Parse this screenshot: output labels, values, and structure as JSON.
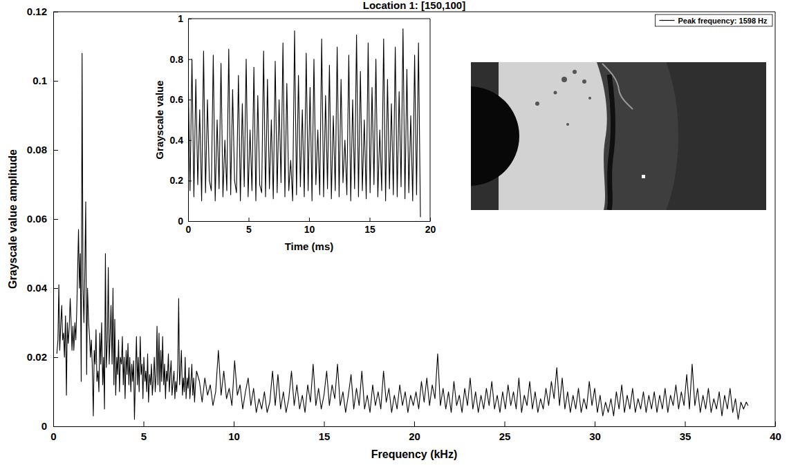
{
  "chart_data": [
    {
      "type": "line",
      "title": "Location 1: [150,100]",
      "x_label": "Frequency (kHz)",
      "y_label": "Grayscale value amplitude",
      "x": [
        0.2,
        0.26,
        0.31,
        0.36,
        0.42,
        0.47,
        0.52,
        0.57,
        0.62,
        0.68,
        0.73,
        0.78,
        0.83,
        0.88,
        0.94,
        0.99,
        1.04,
        1.09,
        1.14,
        1.2,
        1.25,
        1.3,
        1.35,
        1.4,
        1.45,
        1.5,
        1.55,
        1.598,
        1.65,
        1.7,
        1.75,
        1.8,
        1.85,
        1.9,
        1.96,
        2.01,
        2.06,
        2.11,
        2.16,
        2.22,
        2.27,
        2.32,
        2.37,
        2.42,
        2.48,
        2.53,
        2.58,
        2.63,
        2.68,
        2.74,
        2.79,
        2.84,
        2.89,
        2.94,
        3.0,
        3.05,
        3.1,
        3.15,
        3.2,
        3.26,
        3.31,
        3.36,
        3.41,
        3.46,
        3.52,
        3.57,
        3.62,
        3.67,
        3.72,
        3.78,
        3.83,
        3.88,
        3.93,
        3.98,
        4.04,
        4.09,
        4.14,
        4.19,
        4.24,
        4.3,
        4.35,
        4.4,
        4.45,
        4.5,
        4.56,
        4.61,
        4.66,
        4.71,
        4.76,
        4.82,
        4.87,
        4.92,
        4.97,
        5.02,
        5.08,
        5.13,
        5.18,
        5.23,
        5.28,
        5.34,
        5.39,
        5.44,
        5.49,
        5.54,
        5.6,
        5.65,
        5.7,
        5.75,
        5.8,
        5.86,
        5.91,
        5.96,
        6.01,
        6.06,
        6.12,
        6.17,
        6.22,
        6.27,
        6.32,
        6.38,
        6.43,
        6.48,
        6.53,
        6.58,
        6.64,
        6.69,
        6.74,
        6.79,
        6.84,
        6.9,
        6.95,
        7.0,
        7.05,
        7.1,
        7.16,
        7.21,
        7.26,
        7.31,
        7.36,
        7.42,
        7.47,
        7.52,
        7.57,
        7.62,
        7.68,
        7.73,
        7.78,
        7.83,
        7.88,
        7.94,
        8.1,
        8.25,
        8.4,
        8.55,
        8.7,
        8.85,
        9.0,
        9.15,
        9.3,
        9.45,
        9.6,
        9.75,
        9.9,
        10.05,
        10.2,
        10.35,
        10.5,
        10.65,
        10.8,
        10.95,
        11.1,
        11.25,
        11.4,
        11.55,
        11.7,
        11.85,
        12.0,
        12.15,
        12.3,
        12.45,
        12.6,
        12.75,
        12.9,
        13.05,
        13.2,
        13.35,
        13.5,
        13.65,
        13.8,
        13.95,
        14.1,
        14.25,
        14.4,
        14.55,
        14.7,
        14.85,
        15.0,
        15.15,
        15.3,
        15.45,
        15.6,
        15.75,
        15.9,
        16.05,
        16.2,
        16.35,
        16.5,
        16.65,
        16.8,
        16.95,
        17.1,
        17.25,
        17.4,
        17.55,
        17.7,
        17.85,
        18.0,
        18.15,
        18.3,
        18.45,
        18.6,
        18.75,
        18.9,
        19.05,
        19.2,
        19.35,
        19.5,
        19.65,
        19.8,
        19.95,
        20.1,
        20.25,
        20.4,
        20.55,
        20.7,
        20.85,
        21.0,
        21.15,
        21.3,
        21.45,
        21.6,
        21.75,
        21.9,
        22.05,
        22.2,
        22.35,
        22.5,
        22.65,
        22.8,
        22.95,
        23.1,
        23.25,
        23.4,
        23.55,
        23.7,
        23.85,
        24.0,
        24.15,
        24.3,
        24.45,
        24.6,
        24.75,
        24.9,
        25.05,
        25.2,
        25.35,
        25.5,
        25.65,
        25.8,
        25.95,
        26.1,
        26.25,
        26.4,
        26.55,
        26.7,
        26.85,
        27.0,
        27.15,
        27.3,
        27.45,
        27.6,
        27.75,
        27.9,
        28.05,
        28.2,
        28.35,
        28.5,
        28.65,
        28.8,
        28.95,
        29.1,
        29.25,
        29.4,
        29.55,
        29.7,
        29.85,
        30.0,
        30.15,
        30.3,
        30.45,
        30.6,
        30.75,
        30.9,
        31.05,
        31.2,
        31.35,
        31.5,
        31.65,
        31.8,
        31.95,
        32.1,
        32.25,
        32.4,
        32.55,
        32.7,
        32.85,
        33.0,
        33.15,
        33.3,
        33.45,
        33.6,
        33.75,
        33.9,
        34.05,
        34.2,
        34.35,
        34.5,
        34.65,
        34.8,
        34.95,
        35.1,
        35.25,
        35.4,
        35.55,
        35.7,
        35.85,
        36.0,
        36.15,
        36.3,
        36.45,
        36.6,
        36.75,
        36.9,
        37.05,
        37.2,
        37.35,
        37.5,
        37.65,
        37.8,
        37.95,
        38.1,
        38.25,
        38.4,
        38.5
      ],
      "series": [
        {
          "name": "Peak frequency: 1598 Hz",
          "color": "#000000",
          "values": [
            0.021,
            0.025,
            0.041,
            0.022,
            0.03,
            0.035,
            0.025,
            0.027,
            0.02,
            0.032,
            0.009,
            0.03,
            0.024,
            0.028,
            0.037,
            0.03,
            0.022,
            0.029,
            0.022,
            0.03,
            0.025,
            0.033,
            0.045,
            0.057,
            0.04,
            0.05,
            0.013,
            0.108,
            0.04,
            0.03,
            0.045,
            0.065,
            0.015,
            0.04,
            0.03,
            0.026,
            0.02,
            0.025,
            0.018,
            0.003,
            0.022,
            0.018,
            0.028,
            0.013,
            0.016,
            0.01,
            0.027,
            0.018,
            0.03,
            0.012,
            0.02,
            0.005,
            0.05,
            0.017,
            0.025,
            0.046,
            0.018,
            0.026,
            0.035,
            0.018,
            0.04,
            0.012,
            0.031,
            0.009,
            0.02,
            0.015,
            0.025,
            0.01,
            0.02,
            0.018,
            0.026,
            0.012,
            0.02,
            0.008,
            0.022,
            0.015,
            0.024,
            0.012,
            0.02,
            0.01,
            0.018,
            0.013,
            0.019,
            0.002,
            0.016,
            0.026,
            0.012,
            0.02,
            0.01,
            0.026,
            0.015,
            0.018,
            0.008,
            0.02,
            0.013,
            0.016,
            0.01,
            0.021,
            0.007,
            0.015,
            0.012,
            0.018,
            0.009,
            0.013,
            0.02,
            0.01,
            0.015,
            0.029,
            0.012,
            0.027,
            0.01,
            0.022,
            0.013,
            0.026,
            0.012,
            0.018,
            0.008,
            0.016,
            0.013,
            0.021,
            0.01,
            0.015,
            0.019,
            0.009,
            0.013,
            0.016,
            0.008,
            0.013,
            0.01,
            0.017,
            0.037,
            0.012,
            0.016,
            0.022,
            0.009,
            0.014,
            0.01,
            0.02,
            0.008,
            0.014,
            0.011,
            0.017,
            0.008,
            0.012,
            0.018,
            0.009,
            0.014,
            0.007,
            0.012,
            0.016,
            0.013,
            0.007,
            0.014,
            0.009,
            0.012,
            0.006,
            0.01,
            0.022,
            0.009,
            0.016,
            0.008,
            0.011,
            0.006,
            0.019,
            0.009,
            0.012,
            0.005,
            0.01,
            0.014,
            0.006,
            0.011,
            0.004,
            0.008,
            0.005,
            0.01,
            0.004,
            0.007,
            0.016,
            0.006,
            0.015,
            0.005,
            0.01,
            0.004,
            0.008,
            0.016,
            0.006,
            0.012,
            0.005,
            0.009,
            0.004,
            0.012,
            0.007,
            0.018,
            0.006,
            0.011,
            0.005,
            0.009,
            0.016,
            0.006,
            0.012,
            0.008,
            0.018,
            0.006,
            0.01,
            0.004,
            0.009,
            0.015,
            0.005,
            0.011,
            0.006,
            0.016,
            0.005,
            0.009,
            0.004,
            0.012,
            0.006,
            0.01,
            0.005,
            0.016,
            0.007,
            0.011,
            0.004,
            0.009,
            0.005,
            0.012,
            0.006,
            0.01,
            0.004,
            0.009,
            0.006,
            0.01,
            0.005,
            0.013,
            0.007,
            0.014,
            0.006,
            0.012,
            0.008,
            0.021,
            0.006,
            0.011,
            0.005,
            0.01,
            0.004,
            0.013,
            0.006,
            0.009,
            0.004,
            0.011,
            0.006,
            0.014,
            0.005,
            0.01,
            0.004,
            0.009,
            0.005,
            0.011,
            0.006,
            0.013,
            0.005,
            0.009,
            0.004,
            0.01,
            0.005,
            0.012,
            0.006,
            0.01,
            0.005,
            0.014,
            0.004,
            0.009,
            0.006,
            0.013,
            0.005,
            0.01,
            0.004,
            0.008,
            0.005,
            0.011,
            0.006,
            0.013,
            0.008,
            0.017,
            0.006,
            0.014,
            0.005,
            0.01,
            0.004,
            0.009,
            0.005,
            0.011,
            0.004,
            0.008,
            0.005,
            0.013,
            0.006,
            0.011,
            0.004,
            0.009,
            0.003,
            0.007,
            0.004,
            0.008,
            0.003,
            0.01,
            0.005,
            0.012,
            0.004,
            0.009,
            0.005,
            0.011,
            0.004,
            0.008,
            0.005,
            0.01,
            0.004,
            0.009,
            0.005,
            0.01,
            0.004,
            0.009,
            0.005,
            0.011,
            0.004,
            0.009,
            0.006,
            0.012,
            0.005,
            0.01,
            0.006,
            0.015,
            0.005,
            0.018,
            0.006,
            0.011,
            0.004,
            0.009,
            0.005,
            0.011,
            0.004,
            0.008,
            0.005,
            0.01,
            0.003,
            0.009,
            0.005,
            0.011,
            0.004,
            0.008,
            0.002,
            0.007,
            0.005,
            0.007,
            0.006
          ]
        }
      ],
      "xlim": [
        0,
        40
      ],
      "xticks": [
        0,
        5,
        10,
        15,
        20,
        25,
        30,
        35,
        40
      ],
      "ylim": [
        0,
        0.12
      ],
      "yticks": [
        0,
        0.02,
        0.04,
        0.06,
        0.08,
        0.1,
        0.12
      ],
      "legend": "upper right",
      "grid": false
    },
    {
      "type": "line",
      "x_label": "Time (ms)",
      "y_label": "Grayscale value",
      "x": [
        0,
        0.16,
        0.32,
        0.48,
        0.64,
        0.8,
        0.96,
        1.12,
        1.28,
        1.44,
        1.6,
        1.76,
        1.92,
        2.08,
        2.24,
        2.4,
        2.56,
        2.72,
        2.88,
        3.04,
        3.2,
        3.36,
        3.52,
        3.68,
        3.84,
        4,
        4.16,
        4.32,
        4.48,
        4.64,
        4.8,
        4.96,
        5.12,
        5.28,
        5.44,
        5.6,
        5.76,
        5.92,
        6.08,
        6.24,
        6.4,
        6.56,
        6.72,
        6.88,
        7.04,
        7.2,
        7.36,
        7.52,
        7.68,
        7.84,
        8,
        8.16,
        8.32,
        8.48,
        8.64,
        8.8,
        8.96,
        9.12,
        9.28,
        9.44,
        9.6,
        9.76,
        9.92,
        10.08,
        10.24,
        10.4,
        10.56,
        10.72,
        10.88,
        11.04,
        11.2,
        11.36,
        11.52,
        11.68,
        11.84,
        12,
        12.16,
        12.32,
        12.48,
        12.64,
        12.8,
        12.96,
        13.12,
        13.28,
        13.44,
        13.6,
        13.76,
        13.92,
        14.08,
        14.24,
        14.4,
        14.56,
        14.72,
        14.88,
        15.04,
        15.2,
        15.36,
        15.52,
        15.68,
        15.84,
        16,
        16.16,
        16.32,
        16.48,
        16.64,
        16.8,
        16.96,
        17.12,
        17.28,
        17.44,
        17.6,
        17.76,
        17.92,
        18.08,
        18.24,
        18.4,
        18.56,
        18.72,
        18.88,
        19.04,
        19.2
      ],
      "series": [
        {
          "color": "#000000",
          "values": [
            0.75,
            0.15,
            0.8,
            0.12,
            0.7,
            0.18,
            0.55,
            0.1,
            0.84,
            0.14,
            0.6,
            0.2,
            0.15,
            0.82,
            0.1,
            0.5,
            0.16,
            0.78,
            0.12,
            0.4,
            0.15,
            0.85,
            0.13,
            0.65,
            0.2,
            0.14,
            0.72,
            0.1,
            0.58,
            0.17,
            0.8,
            0.12,
            0.45,
            0.15,
            0.76,
            0.1,
            0.62,
            0.18,
            0.14,
            0.84,
            0.12,
            0.7,
            0.16,
            0.5,
            0.11,
            0.79,
            0.14,
            0.6,
            0.19,
            0.88,
            0.12,
            0.68,
            0.15,
            0.3,
            0.1,
            0.94,
            0.13,
            0.72,
            0.17,
            0.55,
            0.12,
            0.83,
            0.15,
            0.66,
            0.1,
            0.8,
            0.18,
            0.45,
            0.13,
            0.9,
            0.12,
            0.62,
            0.16,
            0.77,
            0.11,
            0.52,
            0.15,
            0.86,
            0.12,
            0.7,
            0.19,
            0.4,
            0.13,
            0.82,
            0.1,
            0.6,
            0.16,
            0.92,
            0.12,
            0.74,
            0.15,
            0.5,
            0.11,
            0.88,
            0.14,
            0.66,
            0.18,
            0.8,
            0.12,
            0.45,
            0.15,
            0.9,
            0.1,
            0.7,
            0.16,
            0.58,
            0.13,
            0.86,
            0.12,
            0.64,
            0.17,
            0.95,
            0.11,
            0.75,
            0.14,
            0.52,
            0.1,
            0.82,
            0.13,
            0.88,
            0.02
          ]
        }
      ],
      "xlim": [
        0,
        20
      ],
      "xticks": [
        0,
        5,
        10,
        15,
        20
      ],
      "ylim": [
        0,
        1
      ],
      "yticks": [
        0,
        0.2,
        0.4,
        0.6,
        0.8,
        1
      ],
      "grid": false
    }
  ]
}
